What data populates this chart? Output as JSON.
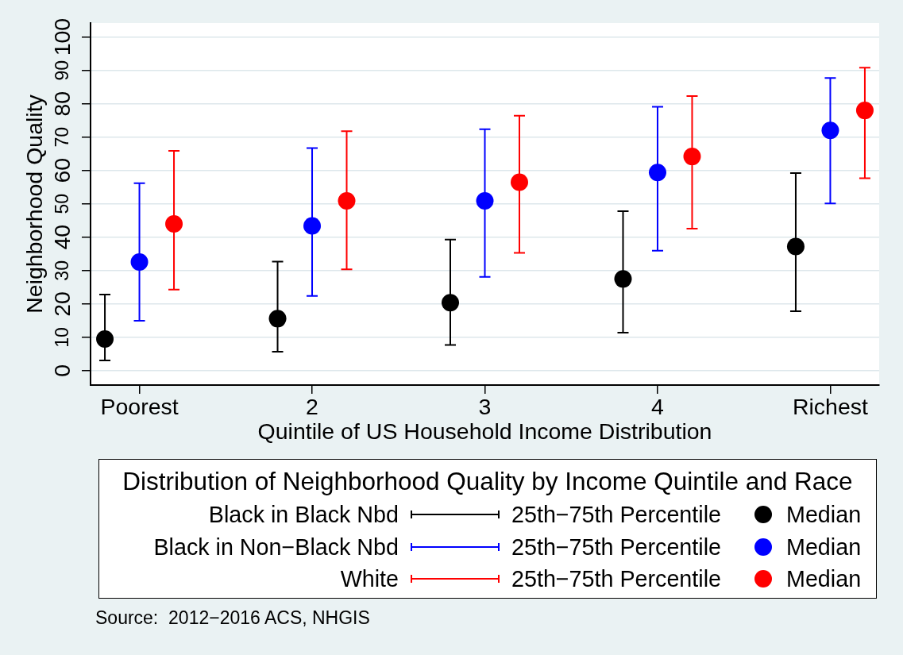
{
  "chart_data": {
    "type": "scatter",
    "xlabel": "Quintile of US Household Income Distribution",
    "ylabel": "Neighborhood Quality",
    "legend_title": "Distribution of Neighborhood Quality by Income Quintile and Race",
    "categories": [
      "Poorest",
      "2",
      "3",
      "4",
      "Richest"
    ],
    "series": [
      {
        "name": "Black in Black Nbd",
        "color": "#000000",
        "values": [
          9.5,
          15.6,
          20.4,
          27.5,
          37.2
        ],
        "errors": [
          [
            3.1,
            22.8
          ],
          [
            5.7,
            32.7
          ],
          [
            7.7,
            39.3
          ],
          [
            11.4,
            47.8
          ],
          [
            17.8,
            59.2
          ]
        ]
      },
      {
        "name": "Black in Non−Black Nbd",
        "color": "#0000ff",
        "values": [
          32.6,
          43.4,
          50.9,
          59.4,
          72.0
        ],
        "errors": [
          [
            15.0,
            56.2
          ],
          [
            22.4,
            66.7
          ],
          [
            28.1,
            72.4
          ],
          [
            36.0,
            79.1
          ],
          [
            50.1,
            87.7
          ]
        ]
      },
      {
        "name": "White",
        "color": "#ff0000",
        "values": [
          44.0,
          50.9,
          56.5,
          64.2,
          78.0
        ],
        "errors": [
          [
            24.3,
            65.9
          ],
          [
            30.4,
            71.8
          ],
          [
            35.3,
            76.4
          ],
          [
            42.6,
            82.3
          ],
          [
            57.7,
            90.8
          ]
        ]
      }
    ],
    "ylim": [
      -4.3,
      104.2
    ],
    "yticks": [
      0,
      10,
      20,
      30,
      40,
      50,
      60,
      70,
      80,
      90,
      100
    ],
    "grid": "y",
    "legend": "bottom",
    "marker": "circle",
    "annotations": [
      "25th−75th Percentile",
      "Median",
      "Source:  2012−2016 ACS, NHGIS"
    ]
  }
}
